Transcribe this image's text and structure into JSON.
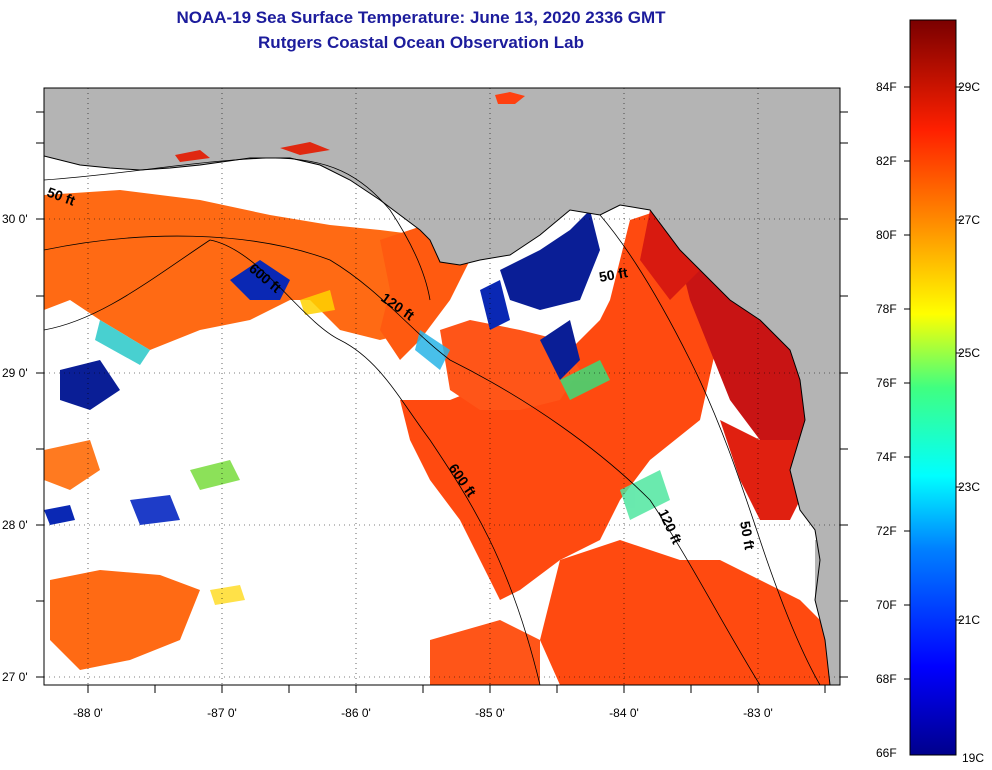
{
  "header": {
    "title_line1": "NOAA-19 Sea Surface Temperature:  June 13, 2020 2336 GMT",
    "title_line2": "Rutgers Coastal Ocean Observation Lab"
  },
  "map": {
    "lat_labels": [
      "30 0'",
      "29 0'",
      "28 0'",
      "27 0'"
    ],
    "lon_labels": [
      "-88 0'",
      "-87 0'",
      "-86 0'",
      "-85 0'",
      "-84 0'",
      "-83 0'"
    ],
    "contour_labels": [
      "50 ft",
      "600 ft",
      "120 ft",
      "50 ft",
      "600 ft",
      "120 ft",
      "50 ft"
    ],
    "colors": {
      "land": "#b4b4b4",
      "cloud": "#ffffff",
      "warm": "#ff5a14",
      "hot": "#c81414",
      "cool": "#0a1e96"
    }
  },
  "colorbar": {
    "fahrenheit_labels": [
      "84F",
      "82F",
      "80F",
      "78F",
      "76F",
      "74F",
      "72F",
      "70F",
      "68F",
      "66F"
    ],
    "celsius_labels": [
      "29C",
      "27C",
      "25C",
      "23C",
      "21C",
      "19C"
    ],
    "min_f": 66,
    "max_f": 86
  }
}
